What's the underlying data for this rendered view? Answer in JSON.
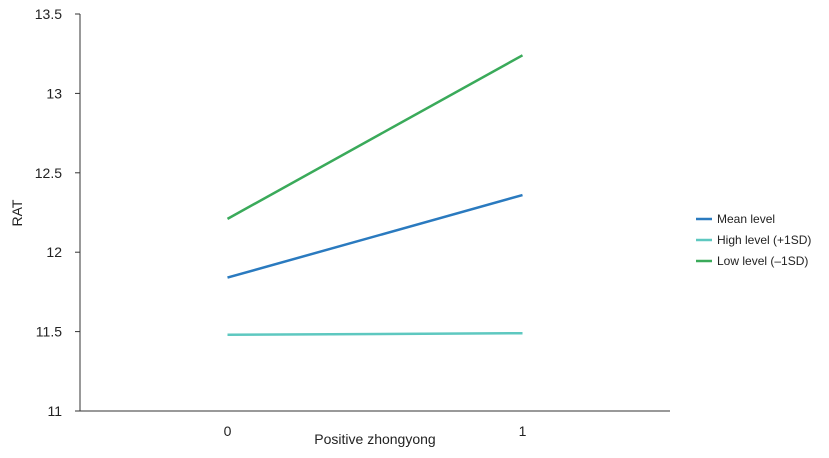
{
  "chart_data": {
    "type": "line",
    "title": "",
    "xlabel": "Positive zhongyong",
    "ylabel": "RAT",
    "x": [
      0,
      1
    ],
    "x_tick_labels": [
      "0",
      "1"
    ],
    "xlim": [
      -0.5,
      1.5
    ],
    "ylim": [
      11,
      13.5
    ],
    "y_ticks": [
      11,
      11.5,
      12,
      12.5,
      13,
      13.5
    ],
    "y_tick_labels": [
      "11",
      "11.5",
      "12",
      "12.5",
      "13",
      "13.5"
    ],
    "grid": false,
    "legend_position": "right",
    "series": [
      {
        "name": "Mean level",
        "color": "#2a7abf",
        "values": [
          11.84,
          12.36
        ]
      },
      {
        "name": "High level (+1SD)",
        "color": "#5ec8c0",
        "values": [
          11.48,
          11.49
        ]
      },
      {
        "name": "Low level (–1SD)",
        "color": "#3aaa5a",
        "values": [
          12.21,
          13.24
        ]
      }
    ]
  }
}
